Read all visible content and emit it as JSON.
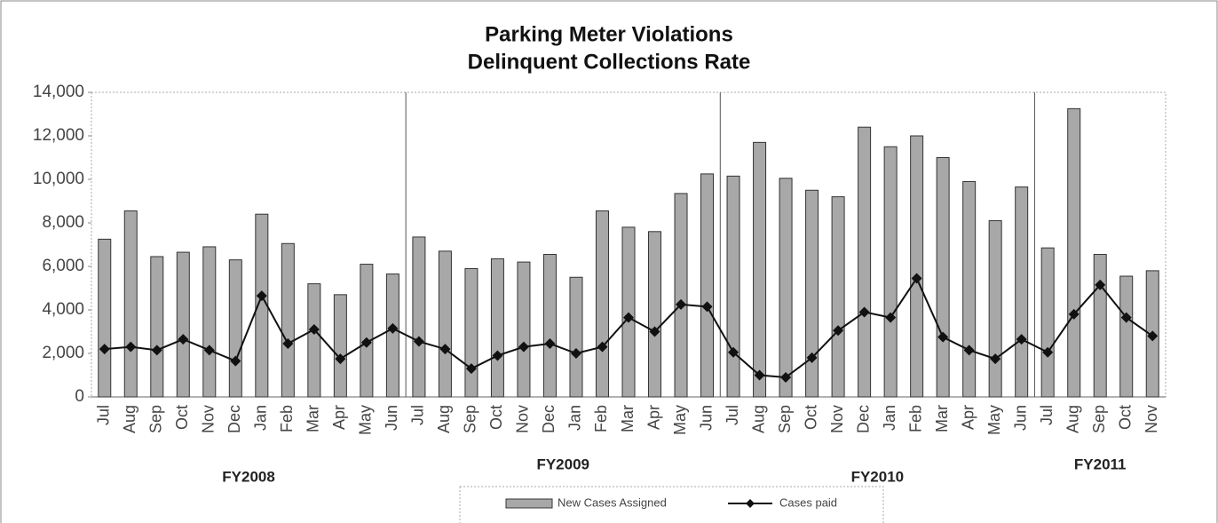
{
  "chart_data": {
    "type": "bar-line",
    "title": "Parking Meter Violations",
    "subtitle": "Delinquent Collections Rate",
    "groups": [
      {
        "name": "FY2008",
        "months": [
          "Jul",
          "Aug",
          "Sep",
          "Oct",
          "Nov",
          "Dec",
          "Jan",
          "Feb",
          "Mar",
          "Apr",
          "May",
          "Jun"
        ]
      },
      {
        "name": "FY2009",
        "months": [
          "Jul",
          "Aug",
          "Sep",
          "Oct",
          "Nov",
          "Dec",
          "Jan",
          "Feb",
          "Mar",
          "Apr",
          "May",
          "Jun"
        ]
      },
      {
        "name": "FY2010",
        "months": [
          "Jul",
          "Aug",
          "Sep",
          "Oct",
          "Nov",
          "Dec",
          "Jan",
          "Feb",
          "Mar",
          "Apr",
          "May",
          "Jun"
        ]
      },
      {
        "name": "FY2011",
        "months": [
          "Jul",
          "Aug",
          "Sep",
          "Oct",
          "Nov"
        ]
      }
    ],
    "series": [
      {
        "name": "New Cases Assigned",
        "kind": "bar",
        "color": "#a8a8a8",
        "values": [
          7250,
          8550,
          6450,
          6650,
          6900,
          6300,
          8400,
          7050,
          5200,
          4700,
          6100,
          5650,
          7350,
          6700,
          5900,
          6350,
          6200,
          6550,
          5500,
          8550,
          7800,
          7600,
          9350,
          10250,
          10150,
          11700,
          10050,
          9500,
          9200,
          12400,
          11500,
          12000,
          11000,
          9900,
          8100,
          9650,
          6850,
          13250,
          6550,
          5550,
          5800
        ]
      },
      {
        "name": "Cases paid",
        "kind": "line",
        "color": "#111111",
        "values": [
          2200,
          2300,
          2150,
          2650,
          2150,
          1650,
          4650,
          2450,
          3100,
          1750,
          2500,
          3150,
          2550,
          2200,
          1300,
          1900,
          2300,
          2450,
          2000,
          2300,
          3650,
          3000,
          4250,
          4150,
          2050,
          1000,
          900,
          1800,
          3050,
          3900,
          3650,
          5450,
          2750,
          2150,
          1750,
          2650,
          2050,
          3800,
          5150,
          3650,
          2800
        ]
      }
    ],
    "ylim": [
      0,
      14000
    ],
    "yticks": [
      0,
      {
        "value": 2000,
        "label": "2,000"
      },
      {
        "value": 4000,
        "label": "4,000"
      },
      {
        "value": 6000,
        "label": "6,000"
      },
      {
        "value": 8000,
        "label": "8,000"
      },
      {
        "value": 10000,
        "label": "10,000"
      },
      {
        "value": 12000,
        "label": "12,000"
      },
      {
        "value": 14000,
        "label": "14,000"
      }
    ],
    "legend": "bottom"
  }
}
